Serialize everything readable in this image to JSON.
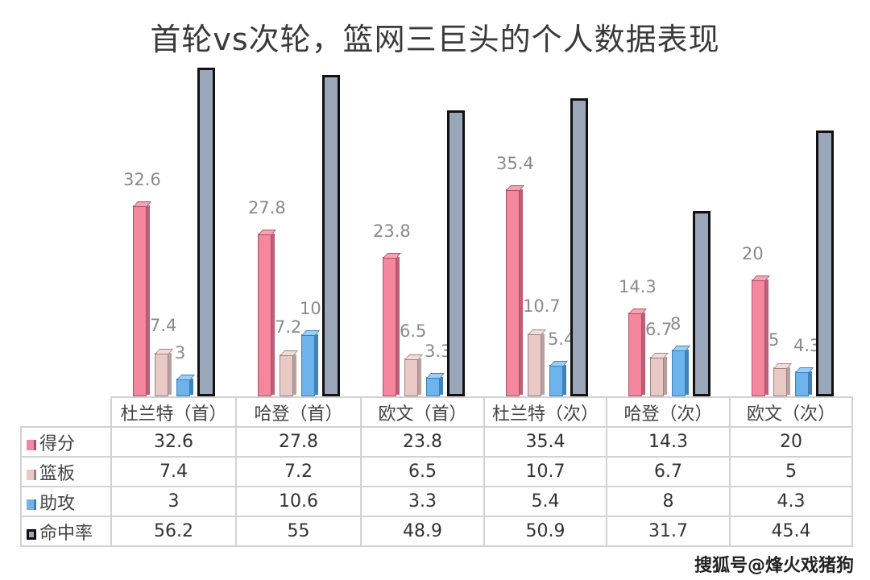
{
  "title": "首轮vs次轮，篮网三巨头的个人数据表现",
  "watermark": "搜狐号@烽火戏猪狗",
  "colors": {
    "pts": "#f4879d",
    "reb": "#e9c9c6",
    "ast": "#6eb4ec",
    "fg": "#9aa7ba",
    "fg_border": "#111111"
  },
  "chart_data": {
    "type": "bar",
    "title": "首轮vs次轮，篮网三巨头的个人数据表现",
    "categories": [
      "杜兰特（首）",
      "哈登（首）",
      "欧文（首）",
      "杜兰特（次）",
      "哈登（次）",
      "欧文（次）"
    ],
    "series": [
      {
        "name": "得分",
        "values": [
          32.6,
          27.8,
          23.8,
          35.4,
          14.3,
          20
        ]
      },
      {
        "name": "篮板",
        "values": [
          7.4,
          7.2,
          6.5,
          10.7,
          6.7,
          5
        ]
      },
      {
        "name": "助攻",
        "values": [
          3,
          10.6,
          3.3,
          5.4,
          8,
          4.3
        ]
      },
      {
        "name": "命中率",
        "values": [
          56.2,
          55,
          48.9,
          50.9,
          31.7,
          45.4
        ]
      }
    ],
    "data_labels_shown_for": [
      "得分",
      "篮板",
      "助攻"
    ],
    "xlabel": "",
    "ylabel": "",
    "grid": false,
    "legend_position": "data-table",
    "data_table": true
  },
  "table": {
    "headers": [
      "杜兰特（首）",
      "哈登（首）",
      "欧文（首）",
      "杜兰特（次）",
      "哈登（次）",
      "欧文（次）"
    ],
    "rows": [
      {
        "label": "得分",
        "values": [
          "32.6",
          "27.8",
          "23.8",
          "35.4",
          "14.3",
          "20"
        ]
      },
      {
        "label": "篮板",
        "values": [
          "7.4",
          "7.2",
          "6.5",
          "10.7",
          "6.7",
          "5"
        ]
      },
      {
        "label": "助攻",
        "values": [
          "3",
          "10.6",
          "3.3",
          "5.4",
          "8",
          "4.3"
        ]
      },
      {
        "label": "命中率",
        "values": [
          "56.2",
          "55",
          "48.9",
          "50.9",
          "31.7",
          "45.4"
        ]
      }
    ]
  }
}
